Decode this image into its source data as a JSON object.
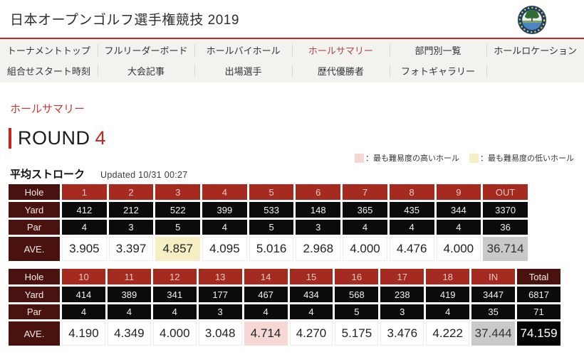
{
  "header": {
    "title": "日本オープンゴルフ選手権競技 2019"
  },
  "nav": {
    "row1": [
      {
        "label": "トーナメントトップ",
        "active": false
      },
      {
        "label": "フルリーダーボード",
        "active": false
      },
      {
        "label": "ホールバイホール",
        "active": false
      },
      {
        "label": "ホールサマリー",
        "active": true
      },
      {
        "label": "部門別一覧",
        "active": false
      },
      {
        "label": "ホールロケーション",
        "active": false
      }
    ],
    "row2": [
      {
        "label": "組合せスタート時刻",
        "active": false
      },
      {
        "label": "大会記事",
        "active": false
      },
      {
        "label": "出場選手",
        "active": false
      },
      {
        "label": "歴代優勝者",
        "active": false
      },
      {
        "label": "フォトギャラリー",
        "active": false
      },
      {
        "label": "",
        "active": false
      }
    ]
  },
  "page": {
    "section_title": "ホールサマリー",
    "round_label": "ROUND",
    "round_number": "4",
    "legend": [
      {
        "swatch": "#f5d8d5",
        "label": "：最も難易度の高いホール"
      },
      {
        "swatch": "#f5efc3",
        "label": "：最も難易度の低いホール"
      }
    ],
    "table_title": "平均ストローク",
    "updated": "Updated 10/31 00:27"
  },
  "tables": {
    "row_labels": [
      "Hole",
      "Yard",
      "Par",
      "AVE."
    ],
    "front": {
      "holes": [
        "1",
        "2",
        "3",
        "4",
        "5",
        "6",
        "7",
        "8",
        "9",
        "OUT"
      ],
      "header_styles": [
        "num",
        "num",
        "num",
        "num",
        "num",
        "num",
        "num",
        "num",
        "num",
        "num"
      ],
      "yards": [
        "412",
        "212",
        "522",
        "399",
        "533",
        "148",
        "365",
        "435",
        "344",
        "3370"
      ],
      "pars": [
        "4",
        "3",
        "5",
        "4",
        "5",
        "3",
        "4",
        "4",
        "4",
        "36"
      ],
      "aves": [
        "3.905",
        "3.397",
        "4.857",
        "4.095",
        "5.016",
        "2.968",
        "4.000",
        "4.476",
        "4.000",
        "36.714"
      ],
      "ave_styles": [
        "plain",
        "plain",
        "lowest",
        "plain",
        "plain",
        "plain",
        "plain",
        "plain",
        "plain",
        "subtotal"
      ]
    },
    "back": {
      "holes": [
        "10",
        "11",
        "12",
        "13",
        "14",
        "15",
        "16",
        "17",
        "18",
        "IN",
        "Total"
      ],
      "header_styles": [
        "num",
        "num",
        "num",
        "num",
        "num",
        "num",
        "num",
        "num",
        "num",
        "num",
        "label"
      ],
      "yards": [
        "414",
        "389",
        "341",
        "177",
        "467",
        "434",
        "568",
        "238",
        "419",
        "3447",
        "6817"
      ],
      "pars": [
        "4",
        "4",
        "4",
        "3",
        "4",
        "4",
        "5",
        "3",
        "4",
        "35",
        "71"
      ],
      "aves": [
        "4.190",
        "4.349",
        "4.000",
        "3.048",
        "4.714",
        "4.270",
        "5.175",
        "3.476",
        "4.222",
        "37.444",
        "74.159"
      ],
      "ave_styles": [
        "plain",
        "plain",
        "plain",
        "plain",
        "highest",
        "plain",
        "plain",
        "plain",
        "plain",
        "subtotal",
        "total"
      ]
    }
  },
  "colors": {
    "accent_red": "#c7261e",
    "nav_active": "#ad4a41",
    "cell_label_bg": "#4a120e",
    "cell_hole_bg": "#a52a1f",
    "cell_dark_bg": "#0b0b0b",
    "highlight_high": "#f5d8d5",
    "highlight_low": "#f5efc3",
    "subtotal_bg": "#c9c9c9",
    "total_bg": "#050505"
  }
}
